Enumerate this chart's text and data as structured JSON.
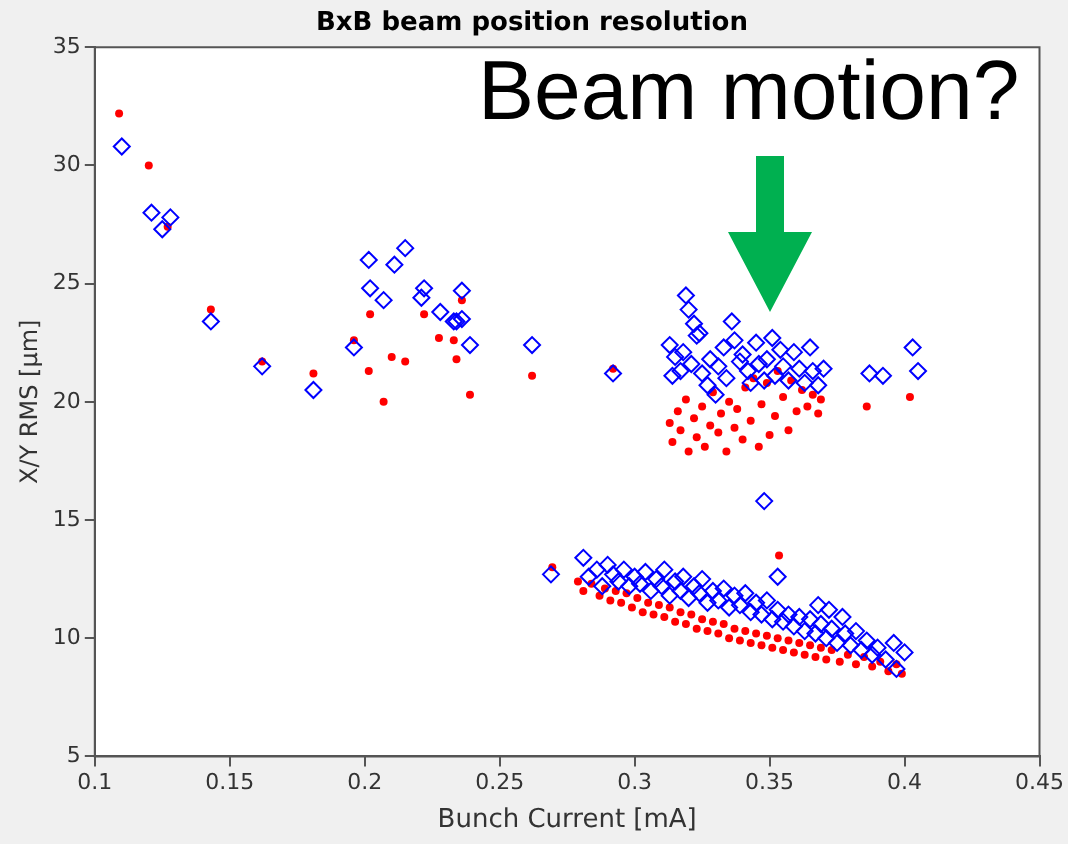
{
  "chart_data": {
    "type": "scatter",
    "title": "BxB beam position resolution",
    "xlabel": "Bunch Current [mA]",
    "ylabel": "X/Y RMS [μm]",
    "xlim": [
      0.1,
      0.45
    ],
    "xticks": [
      0.1,
      0.15,
      0.2,
      0.25,
      0.3,
      0.35,
      0.4,
      0.45
    ],
    "ylim": [
      5,
      35
    ],
    "yticks": [
      5,
      10,
      15,
      20,
      25,
      30,
      35
    ],
    "grid": false,
    "legend": false,
    "annotations": [
      "Beam motion?"
    ],
    "series": [
      {
        "color": "#0000ff",
        "marker": "diamond",
        "x": [
          0.11,
          0.121,
          0.125,
          0.128,
          0.143,
          0.162,
          0.181,
          0.196,
          0.2015,
          0.202,
          0.207,
          0.211,
          0.215,
          0.221,
          0.222,
          0.228,
          0.233,
          0.234,
          0.236,
          0.236,
          0.239,
          0.262,
          0.269,
          0.292,
          0.319,
          0.32,
          0.322,
          0.323,
          0.313,
          0.315,
          0.314,
          0.317,
          0.318,
          0.321,
          0.324,
          0.325,
          0.327,
          0.328,
          0.33,
          0.331,
          0.333,
          0.334,
          0.336,
          0.337,
          0.339,
          0.34,
          0.342,
          0.343,
          0.345,
          0.346,
          0.348,
          0.349,
          0.351,
          0.352,
          0.354,
          0.355,
          0.357,
          0.359,
          0.361,
          0.363,
          0.365,
          0.366,
          0.368,
          0.37,
          0.387,
          0.392,
          0.403,
          0.405,
          0.348,
          0.281,
          0.283,
          0.286,
          0.288,
          0.29,
          0.292,
          0.294,
          0.296,
          0.298,
          0.3,
          0.302,
          0.304,
          0.306,
          0.308,
          0.31,
          0.311,
          0.313,
          0.315,
          0.317,
          0.318,
          0.32,
          0.322,
          0.324,
          0.325,
          0.327,
          0.329,
          0.331,
          0.333,
          0.335,
          0.337,
          0.339,
          0.341,
          0.343,
          0.345,
          0.347,
          0.349,
          0.351,
          0.353,
          0.355,
          0.353,
          0.357,
          0.359,
          0.361,
          0.363,
          0.365,
          0.367,
          0.369,
          0.371,
          0.373,
          0.375,
          0.378,
          0.38,
          0.382,
          0.384,
          0.386,
          0.388,
          0.39,
          0.393,
          0.396,
          0.397,
          0.4,
          0.377,
          0.372,
          0.368
        ],
        "values": [
          30.8,
          28.0,
          27.3,
          27.8,
          23.4,
          21.5,
          20.5,
          22.3,
          26.0,
          24.8,
          24.3,
          25.8,
          26.5,
          24.4,
          24.8,
          23.8,
          23.4,
          23.4,
          24.7,
          23.5,
          22.4,
          22.4,
          12.7,
          21.2,
          24.5,
          23.9,
          23.3,
          22.8,
          22.4,
          21.9,
          21.1,
          21.3,
          22.1,
          21.6,
          22.9,
          21.2,
          20.7,
          21.8,
          20.3,
          21.5,
          22.3,
          21.0,
          23.4,
          22.6,
          21.7,
          22.0,
          21.3,
          20.8,
          22.5,
          21.6,
          20.9,
          21.8,
          22.7,
          21.1,
          22.2,
          21.5,
          20.9,
          22.1,
          21.4,
          20.8,
          22.3,
          21.3,
          20.7,
          21.4,
          21.2,
          21.1,
          22.3,
          21.3,
          15.8,
          13.4,
          12.6,
          12.9,
          12.2,
          13.1,
          12.7,
          12.4,
          12.9,
          12.2,
          12.6,
          12.3,
          12.8,
          12.0,
          12.5,
          12.2,
          12.9,
          11.8,
          12.4,
          12.0,
          12.6,
          11.7,
          12.2,
          11.9,
          12.5,
          11.5,
          12.0,
          11.6,
          12.1,
          11.3,
          11.8,
          11.4,
          11.9,
          11.1,
          11.5,
          11.0,
          11.6,
          10.8,
          11.2,
          10.7,
          12.6,
          11.0,
          10.5,
          10.9,
          10.3,
          10.8,
          10.2,
          10.6,
          10.0,
          10.4,
          9.8,
          10.2,
          9.7,
          10.3,
          9.5,
          9.9,
          9.3,
          9.6,
          9.1,
          9.8,
          8.7,
          9.4,
          10.9,
          11.2,
          11.4
        ]
      },
      {
        "color": "#ff0000",
        "marker": "circle",
        "x": [
          0.109,
          0.12,
          0.127,
          0.143,
          0.162,
          0.181,
          0.196,
          0.202,
          0.2015,
          0.207,
          0.21,
          0.215,
          0.222,
          0.2275,
          0.233,
          0.234,
          0.236,
          0.239,
          0.262,
          0.2695,
          0.292,
          0.313,
          0.314,
          0.316,
          0.317,
          0.319,
          0.32,
          0.322,
          0.323,
          0.325,
          0.326,
          0.328,
          0.329,
          0.331,
          0.332,
          0.334,
          0.335,
          0.337,
          0.338,
          0.34,
          0.341,
          0.343,
          0.344,
          0.346,
          0.347,
          0.349,
          0.35,
          0.352,
          0.353,
          0.355,
          0.357,
          0.358,
          0.36,
          0.362,
          0.364,
          0.366,
          0.368,
          0.369,
          0.386,
          0.402,
          0.279,
          0.281,
          0.284,
          0.287,
          0.289,
          0.291,
          0.293,
          0.295,
          0.297,
          0.299,
          0.301,
          0.303,
          0.305,
          0.307,
          0.309,
          0.311,
          0.313,
          0.315,
          0.317,
          0.319,
          0.321,
          0.323,
          0.325,
          0.327,
          0.329,
          0.331,
          0.333,
          0.335,
          0.337,
          0.339,
          0.341,
          0.343,
          0.345,
          0.347,
          0.349,
          0.351,
          0.353,
          0.355,
          0.357,
          0.359,
          0.361,
          0.363,
          0.365,
          0.367,
          0.369,
          0.371,
          0.373,
          0.376,
          0.379,
          0.382,
          0.385,
          0.388,
          0.391,
          0.394,
          0.397,
          0.399,
          0.3535
        ],
        "values": [
          32.2,
          30.0,
          27.4,
          23.9,
          21.7,
          21.2,
          22.6,
          23.7,
          21.3,
          20.0,
          21.9,
          21.7,
          23.7,
          22.7,
          22.6,
          21.8,
          24.3,
          20.3,
          21.1,
          13.0,
          21.4,
          19.1,
          18.3,
          19.6,
          18.8,
          20.1,
          17.9,
          19.3,
          18.5,
          19.8,
          18.1,
          19.0,
          20.4,
          18.7,
          19.5,
          17.9,
          20.0,
          18.9,
          19.7,
          18.4,
          20.6,
          19.2,
          21.0,
          18.1,
          19.9,
          20.8,
          18.6,
          19.4,
          21.3,
          20.2,
          18.8,
          20.9,
          19.6,
          20.5,
          19.8,
          20.3,
          19.5,
          20.1,
          19.8,
          20.2,
          12.4,
          12.0,
          12.3,
          11.8,
          12.1,
          11.6,
          12.0,
          11.5,
          11.9,
          11.3,
          11.7,
          11.1,
          11.5,
          11.0,
          11.4,
          10.9,
          11.3,
          10.7,
          11.1,
          10.6,
          11.0,
          10.4,
          10.8,
          10.3,
          10.7,
          10.2,
          10.6,
          10.0,
          10.4,
          9.9,
          10.3,
          9.8,
          10.2,
          9.7,
          10.1,
          9.6,
          10.0,
          9.5,
          9.9,
          9.4,
          9.8,
          9.3,
          9.7,
          9.2,
          9.6,
          9.1,
          9.5,
          9.0,
          9.3,
          8.9,
          9.2,
          8.8,
          9.0,
          8.6,
          8.9,
          8.5,
          13.5
        ]
      }
    ]
  }
}
